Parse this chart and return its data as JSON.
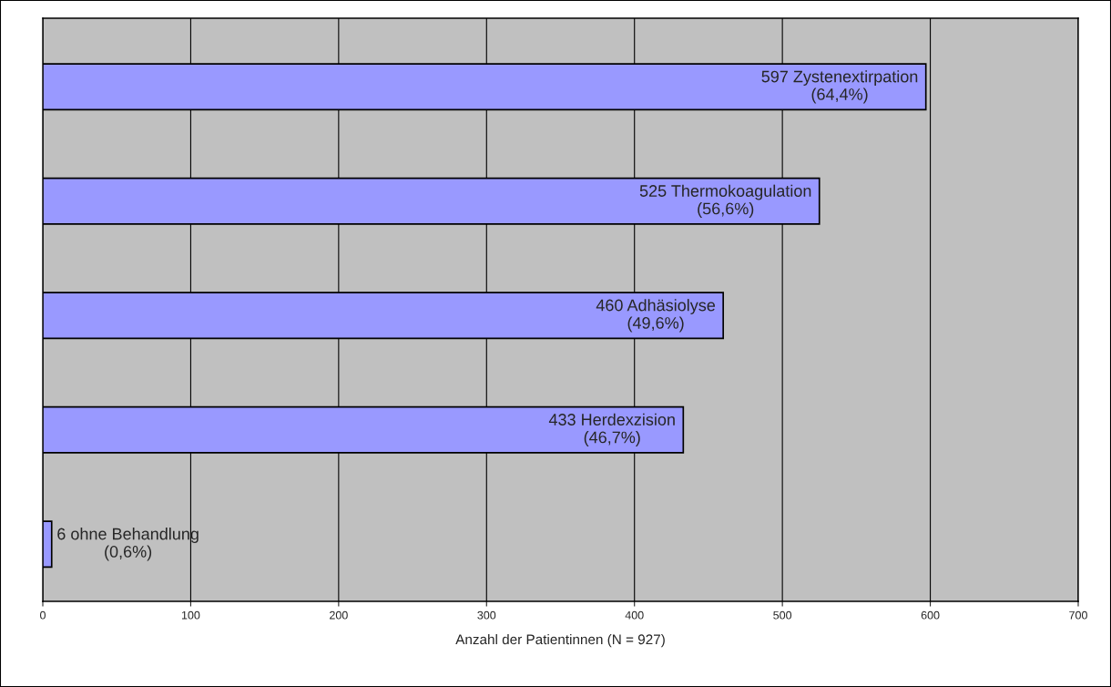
{
  "chart_data": {
    "type": "bar",
    "orientation": "horizontal",
    "xlabel": "Anzahl der Patientinnen (N = 927)",
    "categories": [
      null,
      null,
      null,
      null,
      null
    ],
    "values": [
      597,
      525,
      460,
      433,
      6
    ],
    "value_labels": [
      "597 Zystenextirpation\n(64,4%)",
      "525 Thermokoagulation\n(56,6%)",
      "460 Adhäsiolyse\n(49,6%)",
      "433 Herdexzision\n(46,7%)",
      "6 ohne Behandlung\n(0,6%)"
    ],
    "color": "#9999ff",
    "xlim": [
      0,
      700
    ],
    "xticks": [
      0,
      100,
      200,
      300,
      400,
      500,
      600,
      700
    ],
    "grid": "x",
    "legend": false
  }
}
